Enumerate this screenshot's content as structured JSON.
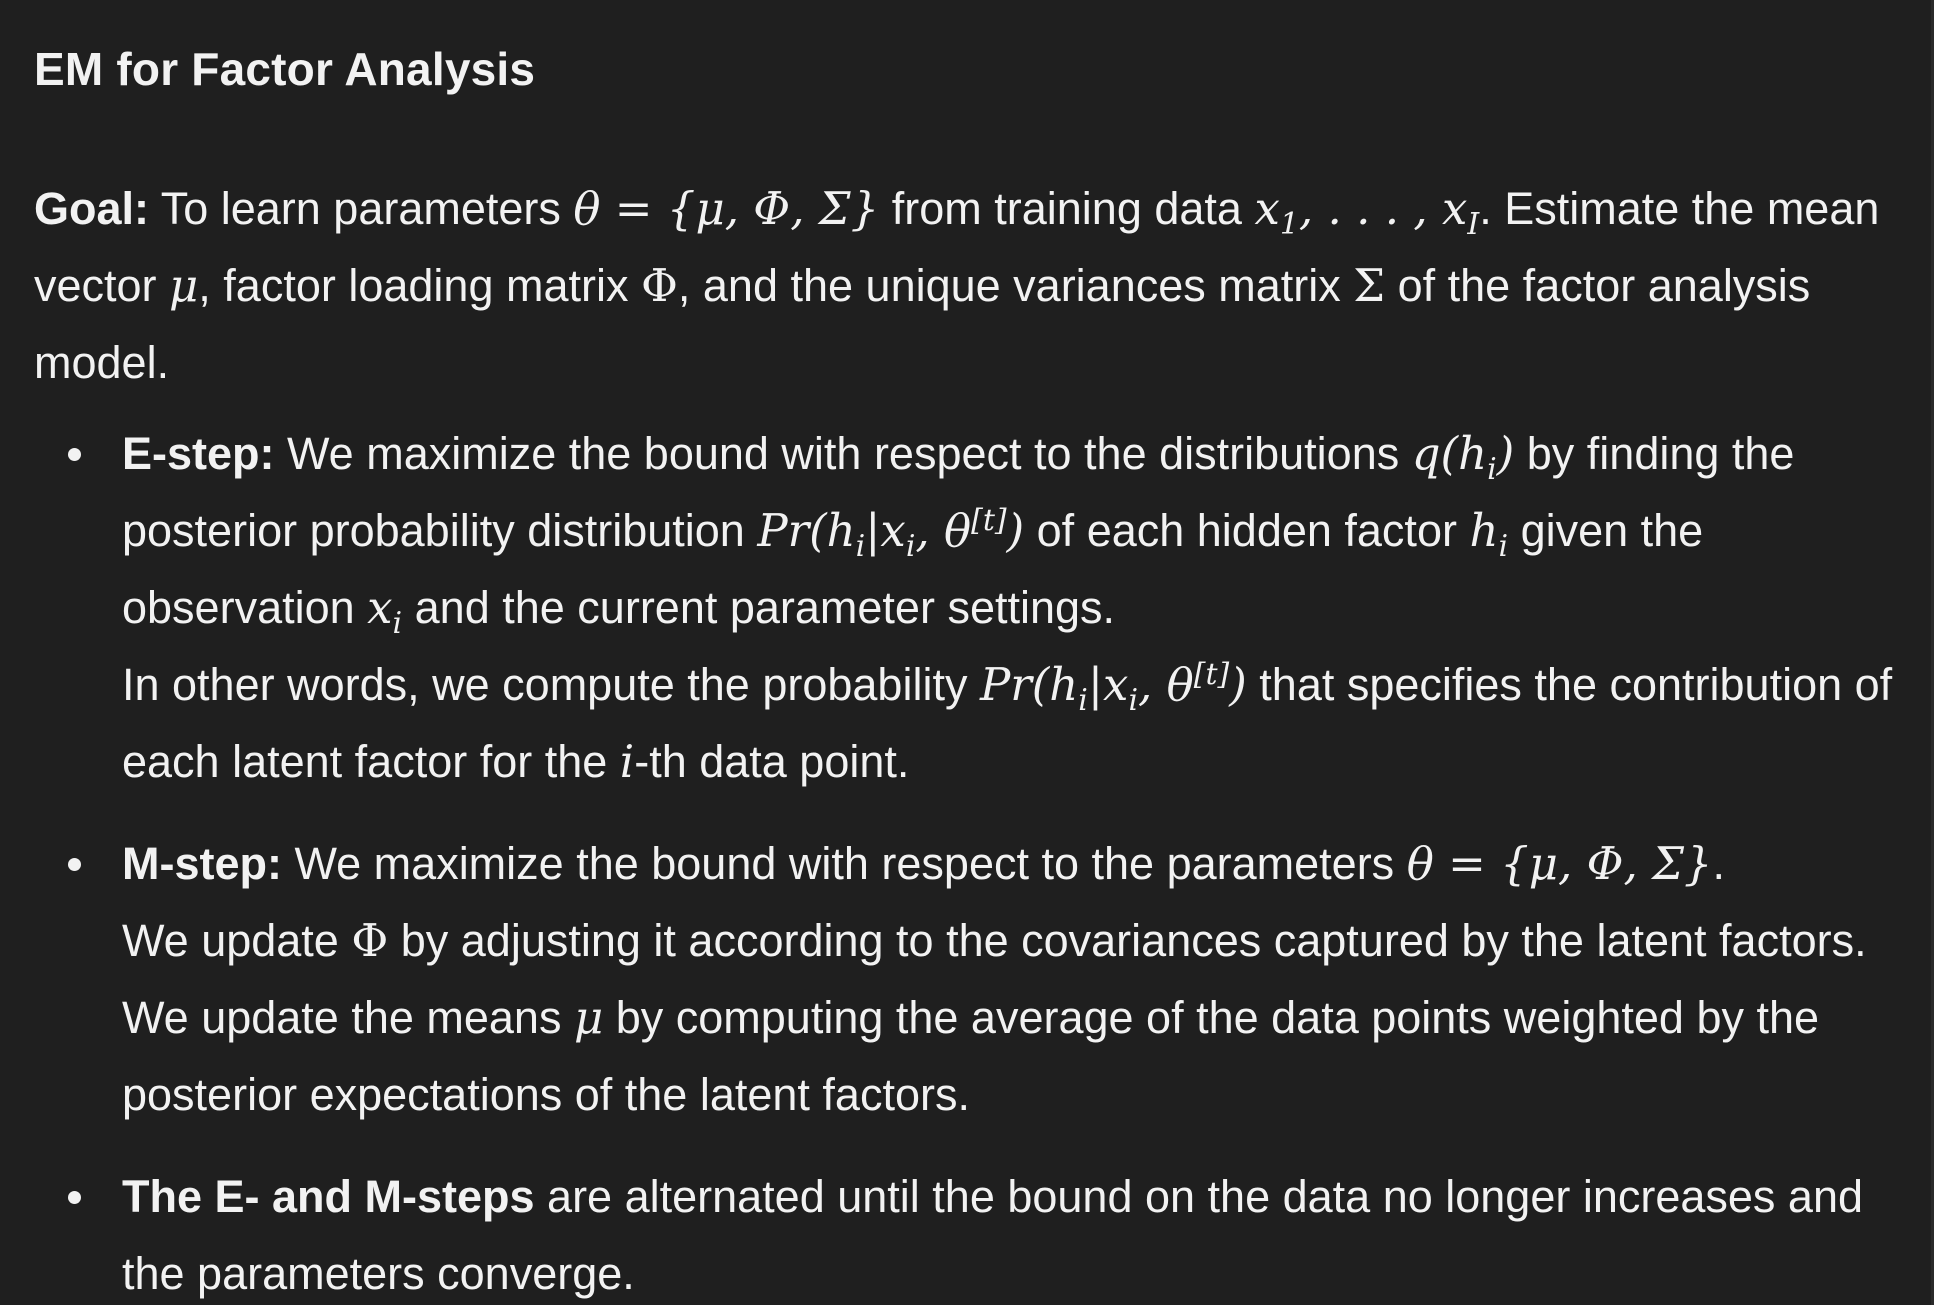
{
  "title": "EM for Factor Analysis",
  "goal": {
    "label": "Goal:",
    "t1": " To learn parameters ",
    "theta_set": "θ = {μ, Φ, Σ}",
    "t2": " from training data ",
    "x_seq_a": "x",
    "x_seq_b": "1",
    "x_seq_c": ", . . . , x",
    "x_seq_d": "I",
    "t3": ". Estimate the mean vector ",
    "mu": "μ",
    "t4": ", factor loading matrix ",
    "phi": "Φ",
    "t5": ", and the unique variances matrix ",
    "sigma": "Σ",
    "t6": " of the factor analysis model."
  },
  "estep": {
    "label": "E-step:",
    "t1": " We maximize the bound with respect to the distributions ",
    "q_a": "q(h",
    "q_b": "i",
    "q_c": ")",
    "t2": " by finding the posterior probability distribution ",
    "pr_a": "Pr(h",
    "pr_b": "i",
    "pr_c": "|x",
    "pr_d": "i",
    "pr_e": ", θ",
    "pr_f": "[t]",
    "pr_g": ")",
    "t3": " of each hidden factor ",
    "h_a": "h",
    "h_b": "i",
    "t4": " given the observation ",
    "x_a": "x",
    "x_b": "i",
    "t5": " and the current parameter settings.",
    "t6": "In other words, we compute the probability ",
    "pr2_a": "Pr(h",
    "pr2_b": "i",
    "pr2_c": "|x",
    "pr2_d": "i",
    "pr2_e": ", θ",
    "pr2_f": "[t]",
    "pr2_g": ")",
    "t7": " that specifies the contribution of each latent factor for the ",
    "i": "i",
    "t8": "-th data point."
  },
  "mstep": {
    "label": "M-step:",
    "t1": " We maximize the bound with respect to the parameters ",
    "theta_set": "θ = {μ, Φ, Σ}",
    "t2": ".",
    "t3": "We update ",
    "phi": "Φ",
    "t4": " by adjusting it according to the covariances captured by the latent factors. We update the means ",
    "mu": "μ",
    "t5": " by computing the average of the data points weighted by the posterior expectations of the latent factors."
  },
  "final": {
    "label": "The E- and M-steps",
    "t1": " are alternated until the bound on the data no longer increases and the parameters converge."
  }
}
